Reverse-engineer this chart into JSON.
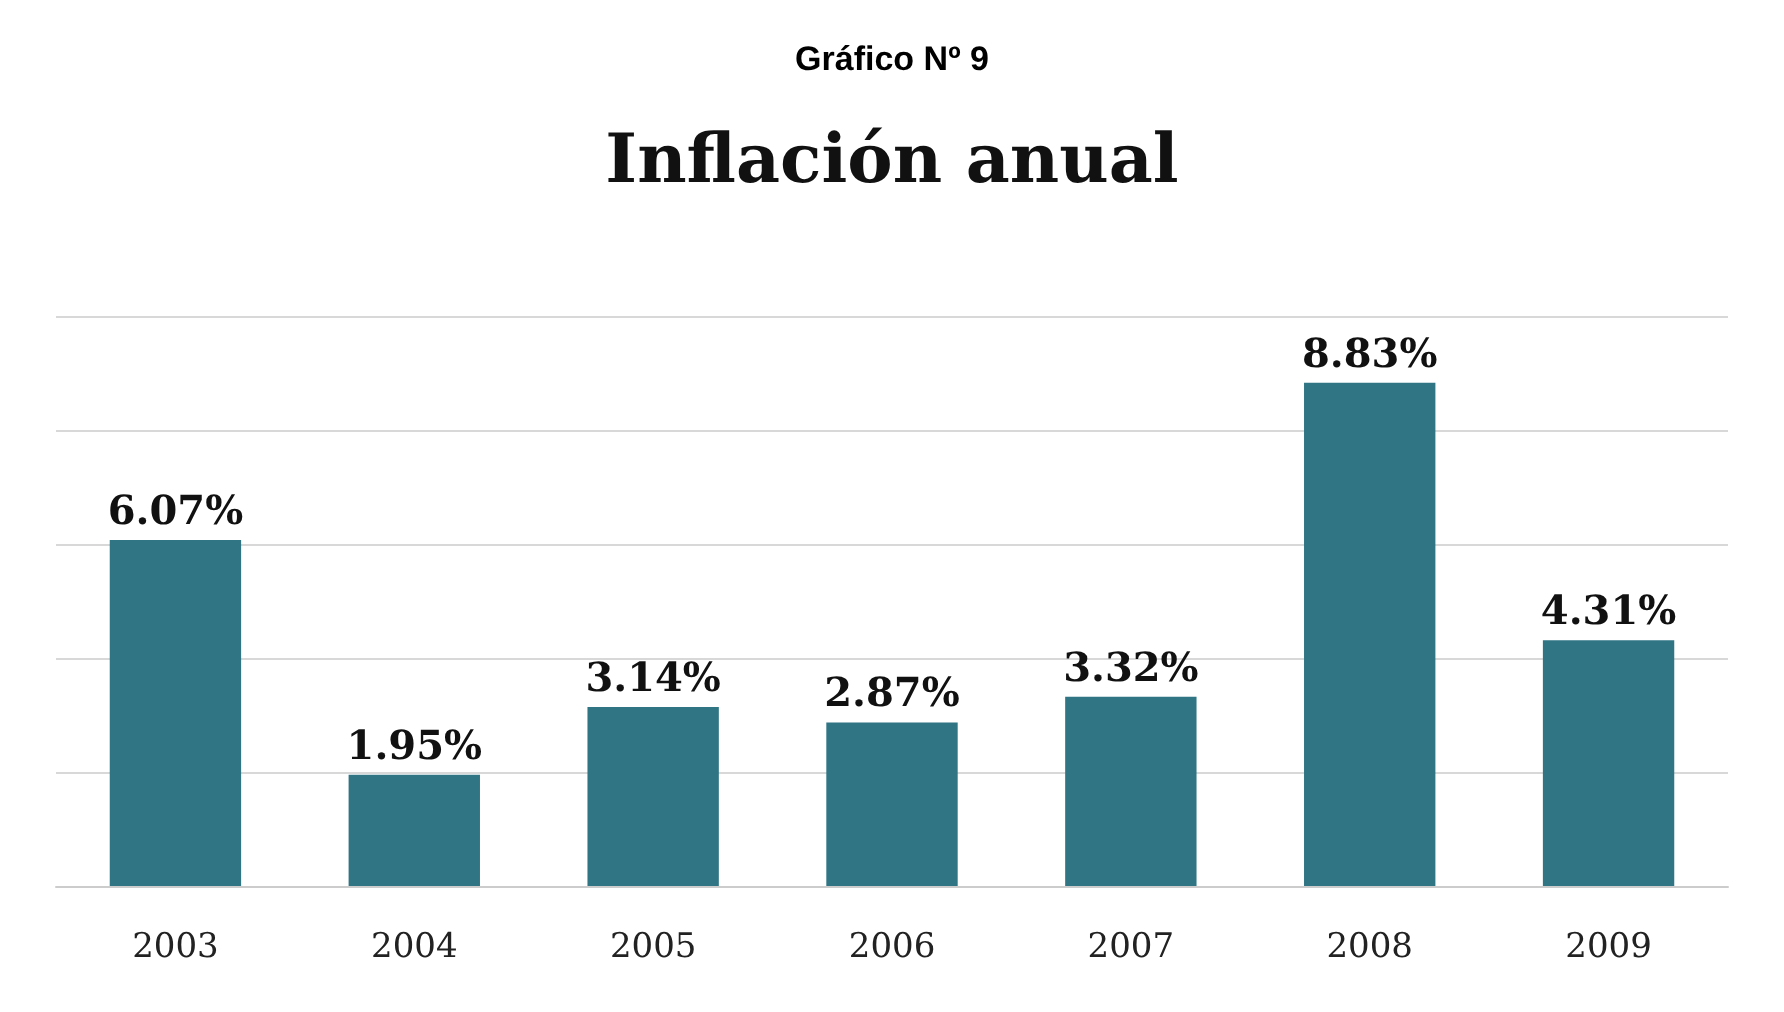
{
  "chart_data": {
    "type": "bar",
    "title": "Gráfico Nº 9",
    "subtitle": "Inflación anual",
    "categories": [
      "2003",
      "2004",
      "2005",
      "2006",
      "2007",
      "2008",
      "2009"
    ],
    "values": [
      6.07,
      1.95,
      3.14,
      2.87,
      3.32,
      8.83,
      4.31
    ],
    "value_labels": [
      "6.07%",
      "1.95%",
      "3.14%",
      "2.87%",
      "3.32%",
      "8.83%",
      "4.31%"
    ],
    "color": "#2f7584",
    "grid": "y",
    "tick_labels": "x"
  }
}
